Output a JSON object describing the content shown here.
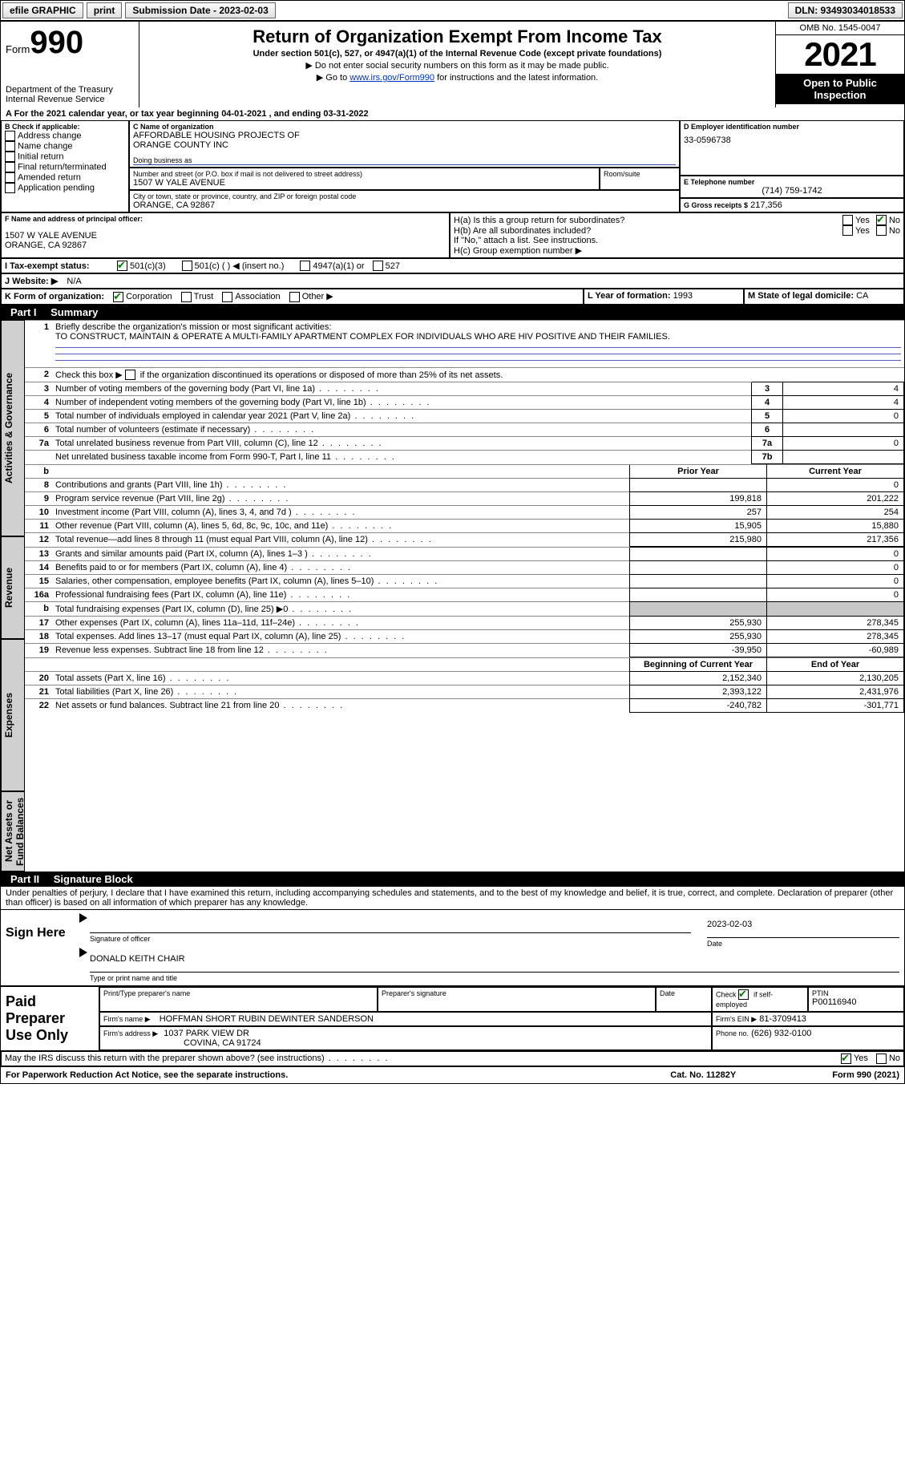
{
  "topbar": {
    "efile": "efile GRAPHIC",
    "print": "print",
    "submission_label": "Submission Date - 2023-02-03",
    "dln_label": "DLN: 93493034018533"
  },
  "header": {
    "form_label": "Form",
    "form_number": "990",
    "dept": "Department of the Treasury",
    "irs": "Internal Revenue Service",
    "title": "Return of Organization Exempt From Income Tax",
    "subtitle": "Under section 501(c), 527, or 4947(a)(1) of the Internal Revenue Code (except private foundations)",
    "note1": "▶ Do not enter social security numbers on this form as it may be made public.",
    "note2_pre": "▶ Go to ",
    "note2_link": "www.irs.gov/Form990",
    "note2_post": " for instructions and the latest information.",
    "omb": "OMB No. 1545-0047",
    "year": "2021",
    "open": "Open to Public Inspection"
  },
  "sectionA": {
    "text": "A For the 2021 calendar year, or tax year beginning 04-01-2021    , and ending 03-31-2022"
  },
  "B": {
    "label": "B Check if applicable:",
    "items": [
      "Address change",
      "Name change",
      "Initial return",
      "Final return/terminated",
      "Amended return",
      "Application pending"
    ]
  },
  "C": {
    "label": "C Name of organization",
    "name1": "AFFORDABLE HOUSING PROJECTS OF",
    "name2": "ORANGE COUNTY INC",
    "dba_label": "Doing business as",
    "addr_label": "Number and street (or P.O. box if mail is not delivered to street address)",
    "room_label": "Room/suite",
    "addr": "1507 W YALE AVENUE",
    "city_label": "City or town, state or province, country, and ZIP or foreign postal code",
    "city": "ORANGE, CA  92867"
  },
  "D": {
    "label": "D Employer identification number",
    "value": "33-0596738"
  },
  "E": {
    "label": "E Telephone number",
    "value": "(714) 759-1742"
  },
  "G": {
    "label": "G Gross receipts $",
    "value": "217,356"
  },
  "F": {
    "label": "F Name and address of principal officer:",
    "addr1": "1507 W YALE AVENUE",
    "addr2": "ORANGE, CA  92867"
  },
  "H": {
    "a": "H(a)  Is this a group return for subordinates?",
    "b": "H(b)  Are all subordinates included?",
    "note": "If \"No,\" attach a list. See instructions.",
    "c": "H(c)  Group exemption number ▶",
    "yes": "Yes",
    "no": "No"
  },
  "I": {
    "label": "I   Tax-exempt status:",
    "opt1": "501(c)(3)",
    "opt2": "501(c) (   ) ◀ (insert no.)",
    "opt3": "4947(a)(1) or",
    "opt4": "527"
  },
  "J": {
    "label": "J   Website: ▶",
    "value": "N/A"
  },
  "K": {
    "label": "K Form of organization:",
    "opts": [
      "Corporation",
      "Trust",
      "Association",
      "Other ▶"
    ]
  },
  "L": {
    "label": "L Year of formation:",
    "value": "1993"
  },
  "M": {
    "label": "M State of legal domicile:",
    "value": "CA"
  },
  "part1": {
    "title": "Part I",
    "name": "Summary",
    "line1_label": "Briefly describe the organization's mission or most significant activities:",
    "line1_text": "TO CONSTRUCT, MAINTAIN & OPERATE A MULTI-FAMILY APARTMENT COMPLEX FOR INDIVIDUALS WHO ARE HIV POSITIVE AND THEIR FAMILIES.",
    "line2": "Check this box ▶       if the organization discontinued its operations or disposed of more than 25% of its net assets.",
    "tab_act": "Activities & Governance",
    "tab_rev": "Revenue",
    "tab_exp": "Expenses",
    "tab_net": "Net Assets or Fund Balances",
    "col_prior": "Prior Year",
    "col_current": "Current Year",
    "col_begin": "Beginning of Current Year",
    "col_end": "End of Year",
    "rows_gov": [
      {
        "n": "3",
        "t": "Number of voting members of the governing body (Part VI, line 1a)",
        "b": "3",
        "v": "4"
      },
      {
        "n": "4",
        "t": "Number of independent voting members of the governing body (Part VI, line 1b)",
        "b": "4",
        "v": "4"
      },
      {
        "n": "5",
        "t": "Total number of individuals employed in calendar year 2021 (Part V, line 2a)",
        "b": "5",
        "v": "0"
      },
      {
        "n": "6",
        "t": "Total number of volunteers (estimate if necessary)",
        "b": "6",
        "v": ""
      },
      {
        "n": "7a",
        "t": "Total unrelated business revenue from Part VIII, column (C), line 12",
        "b": "7a",
        "v": "0"
      },
      {
        "n": "",
        "t": "Net unrelated business taxable income from Form 990-T, Part I, line 11",
        "b": "7b",
        "v": ""
      }
    ],
    "rows_rev": [
      {
        "n": "8",
        "t": "Contributions and grants (Part VIII, line 1h)",
        "p": "",
        "c": "0"
      },
      {
        "n": "9",
        "t": "Program service revenue (Part VIII, line 2g)",
        "p": "199,818",
        "c": "201,222"
      },
      {
        "n": "10",
        "t": "Investment income (Part VIII, column (A), lines 3, 4, and 7d )",
        "p": "257",
        "c": "254"
      },
      {
        "n": "11",
        "t": "Other revenue (Part VIII, column (A), lines 5, 6d, 8c, 9c, 10c, and 11e)",
        "p": "15,905",
        "c": "15,880"
      },
      {
        "n": "12",
        "t": "Total revenue—add lines 8 through 11 (must equal Part VIII, column (A), line 12)",
        "p": "215,980",
        "c": "217,356"
      }
    ],
    "rows_exp": [
      {
        "n": "13",
        "t": "Grants and similar amounts paid (Part IX, column (A), lines 1–3 )",
        "p": "",
        "c": "0"
      },
      {
        "n": "14",
        "t": "Benefits paid to or for members (Part IX, column (A), line 4)",
        "p": "",
        "c": "0"
      },
      {
        "n": "15",
        "t": "Salaries, other compensation, employee benefits (Part IX, column (A), lines 5–10)",
        "p": "",
        "c": "0"
      },
      {
        "n": "16a",
        "t": "Professional fundraising fees (Part IX, column (A), line 11e)",
        "p": "",
        "c": "0"
      },
      {
        "n": "b",
        "t": "Total fundraising expenses (Part IX, column (D), line 25) ▶0",
        "p": "shade",
        "c": "shade"
      },
      {
        "n": "17",
        "t": "Other expenses (Part IX, column (A), lines 11a–11d, 11f–24e)",
        "p": "255,930",
        "c": "278,345"
      },
      {
        "n": "18",
        "t": "Total expenses. Add lines 13–17 (must equal Part IX, column (A), line 25)",
        "p": "255,930",
        "c": "278,345"
      },
      {
        "n": "19",
        "t": "Revenue less expenses. Subtract line 18 from line 12",
        "p": "-39,950",
        "c": "-60,989"
      }
    ],
    "rows_net": [
      {
        "n": "20",
        "t": "Total assets (Part X, line 16)",
        "p": "2,152,340",
        "c": "2,130,205"
      },
      {
        "n": "21",
        "t": "Total liabilities (Part X, line 26)",
        "p": "2,393,122",
        "c": "2,431,976"
      },
      {
        "n": "22",
        "t": "Net assets or fund balances. Subtract line 21 from line 20",
        "p": "-240,782",
        "c": "-301,771"
      }
    ]
  },
  "part2": {
    "title": "Part II",
    "name": "Signature Block",
    "decl": "Under penalties of perjury, I declare that I have examined this return, including accompanying schedules and statements, and to the best of my knowledge and belief, it is true, correct, and complete. Declaration of preparer (other than officer) is based on all information of which preparer has any knowledge.",
    "sign_here": "Sign Here",
    "sig_officer": "Signature of officer",
    "sig_date": "2023-02-03",
    "date_label": "Date",
    "officer_name": "DONALD KEITH CHAIR",
    "type_label": "Type or print name and title",
    "paid": "Paid Preparer Use Only",
    "prep_name_label": "Print/Type preparer's name",
    "prep_sig_label": "Preparer's signature",
    "check_self": "Check         if self-employed",
    "ptin_label": "PTIN",
    "ptin": "P00116940",
    "firm_name_label": "Firm's name     ▶",
    "firm_name": "HOFFMAN SHORT RUBIN DEWINTER SANDERSON",
    "firm_ein_label": "Firm's EIN ▶",
    "firm_ein": "81-3709413",
    "firm_addr_label": "Firm's address ▶",
    "firm_addr1": "1037 PARK VIEW DR",
    "firm_addr2": "COVINA, CA  91724",
    "phone_label": "Phone no.",
    "phone": "(626) 932-0100",
    "discuss": "May the IRS discuss this return with the preparer shown above? (see instructions)",
    "yes": "Yes",
    "no": "No"
  },
  "footer": {
    "left": "For Paperwork Reduction Act Notice, see the separate instructions.",
    "mid": "Cat. No. 11282Y",
    "right": "Form 990 (2021)"
  }
}
